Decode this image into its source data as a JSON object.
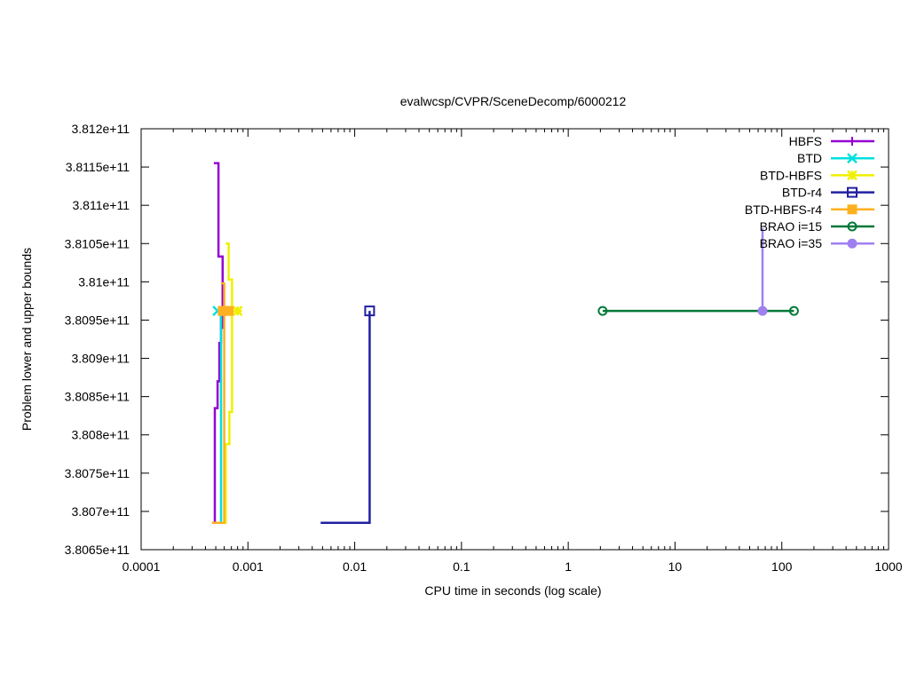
{
  "chart_data": {
    "type": "line",
    "title": "evalwcsp/CVPR/SceneDecomp/6000212",
    "xlabel": "CPU time in seconds (log scale)",
    "ylabel": "Problem lower and upper bounds",
    "xscale": "log",
    "xlim": [
      0.0001,
      1000
    ],
    "ylim": [
      380650000000,
      381200000000
    ],
    "x_ticks": [
      {
        "v": 0.0001,
        "label": "0.0001"
      },
      {
        "v": 0.001,
        "label": "0.001"
      },
      {
        "v": 0.01,
        "label": "0.01"
      },
      {
        "v": 0.1,
        "label": "0.1"
      },
      {
        "v": 1,
        "label": "1"
      },
      {
        "v": 10,
        "label": "10"
      },
      {
        "v": 100,
        "label": "100"
      },
      {
        "v": 1000,
        "label": "1000"
      }
    ],
    "y_ticks": [
      {
        "v": 380650000000,
        "label": "3.8065e+11"
      },
      {
        "v": 380700000000,
        "label": "3.807e+11"
      },
      {
        "v": 380750000000,
        "label": "3.8075e+11"
      },
      {
        "v": 380800000000,
        "label": "3.808e+11"
      },
      {
        "v": 380850000000,
        "label": "3.8085e+11"
      },
      {
        "v": 380900000000,
        "label": "3.809e+11"
      },
      {
        "v": 380950000000,
        "label": "3.8095e+11"
      },
      {
        "v": 381000000000,
        "label": "3.81e+11"
      },
      {
        "v": 381050000000,
        "label": "3.8105e+11"
      },
      {
        "v": 381100000000,
        "label": "3.811e+11"
      },
      {
        "v": 381150000000,
        "label": "3.8115e+11"
      },
      {
        "v": 381200000000,
        "label": "3.812e+11"
      }
    ],
    "grid": false,
    "legend_position": "top-right",
    "series": [
      {
        "name": "HBFS",
        "color": "#9400d3",
        "marker": "plus",
        "style": "steps",
        "upper": [
          [
            0.00048,
            381155000000
          ],
          [
            0.00053,
            381155000000
          ],
          [
            0.00053,
            381033000000
          ],
          [
            0.00058,
            381033000000
          ],
          [
            0.00058,
            380940000000
          ],
          [
            0.0006,
            380940000000
          ]
        ],
        "lower": [
          [
            0.00047,
            380685000000
          ],
          [
            0.00049,
            380685000000
          ],
          [
            0.00049,
            380835000000
          ],
          [
            0.00052,
            380835000000
          ],
          [
            0.00052,
            380870000000
          ],
          [
            0.00054,
            380870000000
          ],
          [
            0.00054,
            380920000000
          ],
          [
            0.00056,
            380920000000
          ],
          [
            0.00056,
            380960000000
          ],
          [
            0.00058,
            380960000000
          ]
        ],
        "markers": []
      },
      {
        "name": "BTD",
        "color": "#00e0e0",
        "marker": "x",
        "style": "steps",
        "upper": [
          [
            0.00052,
            380962000000
          ],
          [
            0.00058,
            380962000000
          ]
        ],
        "lower": [
          [
            0.00056,
            380685000000
          ],
          [
            0.00056,
            380962000000
          ]
        ],
        "markers": [
          [
            0.00052,
            380962000000
          ]
        ]
      },
      {
        "name": "BTD-HBFS",
        "color": "#f0f000",
        "marker": "star",
        "style": "steps",
        "upper": [
          [
            0.00062,
            381050000000
          ],
          [
            0.00066,
            381050000000
          ],
          [
            0.00066,
            381003000000
          ],
          [
            0.00071,
            381003000000
          ],
          [
            0.00071,
            380962000000
          ],
          [
            0.0008,
            380962000000
          ]
        ],
        "lower": [
          [
            0.00055,
            380685000000
          ],
          [
            0.00062,
            380685000000
          ],
          [
            0.00062,
            380788000000
          ],
          [
            0.00067,
            380788000000
          ],
          [
            0.00067,
            380830000000
          ],
          [
            0.00071,
            380830000000
          ],
          [
            0.00071,
            380962000000
          ]
        ],
        "markers": [
          [
            0.00063,
            380962000000
          ],
          [
            0.0008,
            380962000000
          ]
        ]
      },
      {
        "name": "BTD-r4",
        "color": "#2020a0",
        "marker": "square",
        "style": "steps",
        "upper": [],
        "lower": [
          [
            0.0048,
            380685000000
          ],
          [
            0.0138,
            380685000000
          ],
          [
            0.0138,
            380962000000
          ]
        ],
        "markers": [
          [
            0.0138,
            380962000000
          ]
        ]
      },
      {
        "name": "BTD-HBFS-r4",
        "color": "#ffb020",
        "marker": "filled-square",
        "style": "steps",
        "upper": [
          [
            0.00056,
            380998000000
          ],
          [
            0.0006,
            380998000000
          ],
          [
            0.0006,
            380962000000
          ],
          [
            0.0007,
            380962000000
          ]
        ],
        "lower": [
          [
            0.00046,
            380685000000
          ],
          [
            0.0006,
            380685000000
          ],
          [
            0.0006,
            380962000000
          ]
        ],
        "markers": [
          [
            0.00058,
            380962000000
          ],
          [
            0.00066,
            380962000000
          ]
        ]
      },
      {
        "name": "BRAO i=15",
        "color": "#007838",
        "marker": "circle",
        "style": "steps",
        "upper": [
          [
            2.1,
            380962000000
          ],
          [
            130,
            380962000000
          ]
        ],
        "lower": [],
        "markers": [
          [
            2.1,
            380962000000
          ],
          [
            130,
            380962000000
          ]
        ]
      },
      {
        "name": "BRAO i=35",
        "color": "#a080f0",
        "marker": "filled-circle",
        "style": "steps",
        "upper": [
          [
            66,
            381070000000
          ],
          [
            66,
            380962000000
          ]
        ],
        "lower": [],
        "markers": [
          [
            66,
            380962000000
          ]
        ]
      }
    ]
  }
}
